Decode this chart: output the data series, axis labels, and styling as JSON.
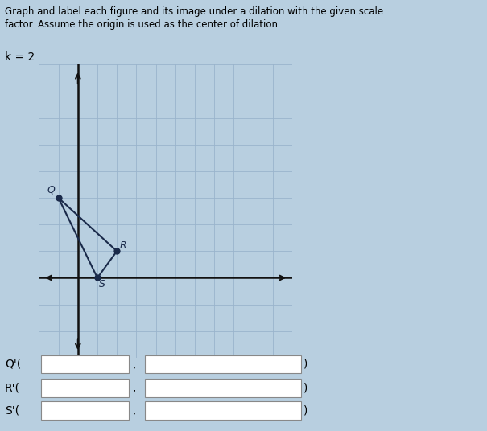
{
  "title_line1": "Graph and label each figure and its image under a dilation with the given scale",
  "title_line2": "factor. Assume the origin is used as the center of dilation.",
  "k_label": "k = 2",
  "Q": [
    -1,
    3
  ],
  "R": [
    2,
    1
  ],
  "S": [
    1,
    0
  ],
  "grid_color": "#9ab4cc",
  "axis_color": "#111111",
  "triangle_color": "#1a2a4a",
  "bg_color": "#b8cfe0",
  "fig_bg": "#b8cfe0",
  "xlim": [
    -2,
    11
  ],
  "ylim": [
    -3,
    8
  ],
  "title_fontsize": 8.5,
  "k_fontsize": 10,
  "label_fontsize": 10,
  "point_fontsize": 9
}
